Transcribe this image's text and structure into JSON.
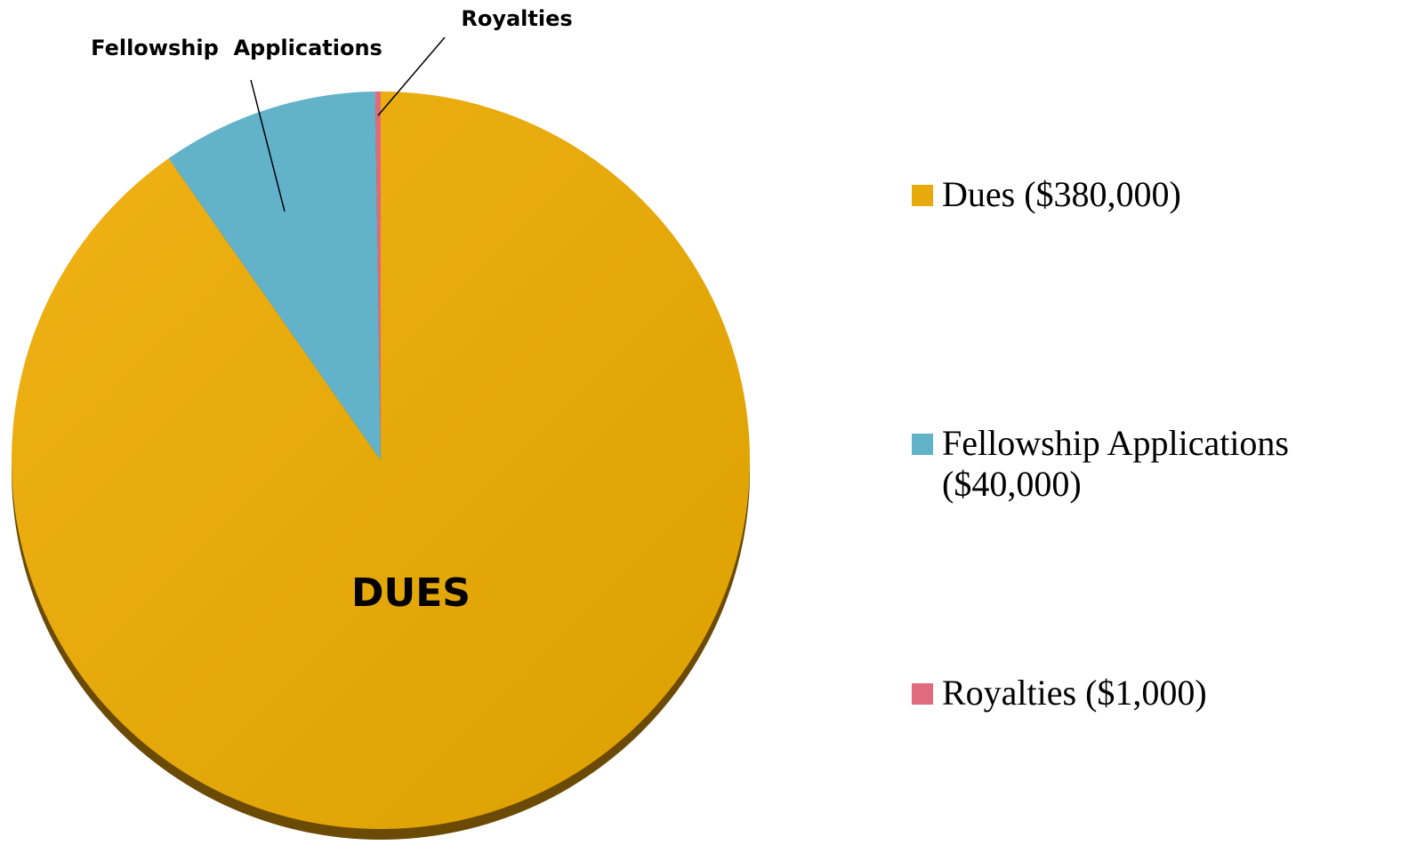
{
  "chart_data": {
    "type": "pie",
    "categories": [
      "Dues ($380,000)",
      "Fellowship Applications ($40,000)",
      "Royalties ($1,000)"
    ],
    "values": [
      380000,
      40000,
      1000
    ],
    "labels": [
      "DUES",
      "Fellowship  Applications",
      "Royalties"
    ],
    "colors": [
      "#e8a90a",
      "#62b2ca",
      "#e06a7e"
    ],
    "legend": "right"
  }
}
